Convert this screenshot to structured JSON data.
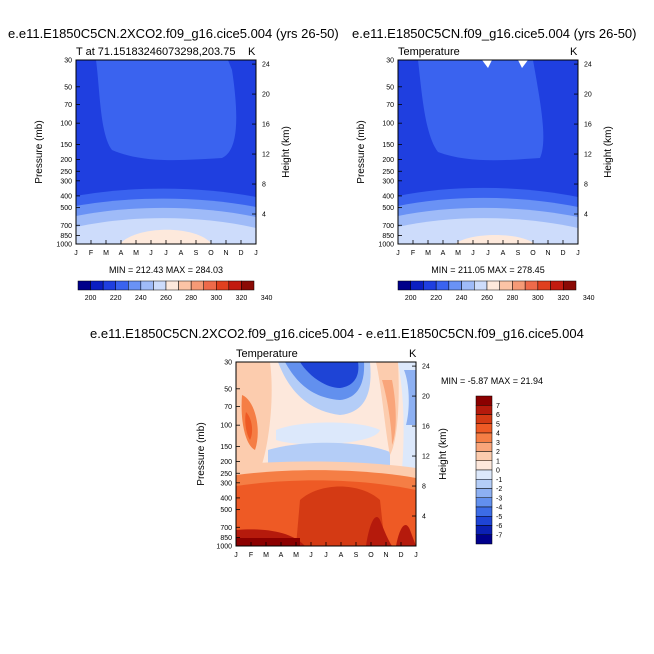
{
  "chart_data": [
    {
      "type": "heatmap",
      "title": "e.e11.E1850C5CN.2XCO2.f09_g16.cice5.004 (yrs 26-50)",
      "left_label": "T at 71.15183246073298,203.75",
      "right_label": "K",
      "xlabel": "",
      "ylabel": "Pressure (mb)",
      "ylabel_right": "Height (km)",
      "x_ticks": [
        "J",
        "F",
        "M",
        "A",
        "M",
        "J",
        "J",
        "A",
        "S",
        "O",
        "N",
        "D",
        "J"
      ],
      "y_ticks": [
        "30",
        "50",
        "70",
        "100",
        "150",
        "200",
        "250",
        "300",
        "400",
        "500",
        "700",
        "850",
        "1000"
      ],
      "y_ticks_right": [
        "24",
        "20",
        "16",
        "12",
        "8",
        "4"
      ],
      "minmax_text": "MIN = 212.43 MAX = 284.03",
      "colorbar_labels": [
        "200",
        "220",
        "240",
        "260",
        "280",
        "300",
        "320",
        "340"
      ]
    },
    {
      "type": "heatmap",
      "title": "e.e11.E1850C5CN.f09_g16.cice5.004 (yrs 26-50)",
      "left_label": "Temperature",
      "right_label": "K",
      "xlabel": "",
      "ylabel": "Pressure (mb)",
      "ylabel_right": "Height (km)",
      "x_ticks": [
        "J",
        "F",
        "M",
        "A",
        "M",
        "J",
        "J",
        "A",
        "S",
        "O",
        "N",
        "D",
        "J"
      ],
      "y_ticks": [
        "30",
        "50",
        "70",
        "100",
        "150",
        "200",
        "250",
        "300",
        "400",
        "500",
        "700",
        "850",
        "1000"
      ],
      "y_ticks_right": [
        "24",
        "20",
        "16",
        "12",
        "8",
        "4"
      ],
      "minmax_text": "MIN = 211.05 MAX = 278.45",
      "colorbar_labels": [
        "200",
        "220",
        "240",
        "260",
        "280",
        "300",
        "320",
        "340"
      ]
    },
    {
      "type": "heatmap",
      "title": "e.e11.E1850C5CN.2XCO2.f09_g16.cice5.004 - e.e11.E1850C5CN.f09_g16.cice5.004",
      "left_label": "Temperature",
      "right_label": "K",
      "xlabel": "",
      "ylabel": "Pressure (mb)",
      "ylabel_right": "Height (km)",
      "x_ticks": [
        "J",
        "F",
        "M",
        "A",
        "M",
        "J",
        "J",
        "A",
        "S",
        "O",
        "N",
        "D",
        "J"
      ],
      "y_ticks": [
        "30",
        "50",
        "70",
        "100",
        "150",
        "200",
        "250",
        "300",
        "400",
        "500",
        "700",
        "850",
        "1000"
      ],
      "y_ticks_right": [
        "24",
        "20",
        "16",
        "12",
        "8",
        "4"
      ],
      "minmax_text": "MIN =  -5.87 MAX =  21.94",
      "colorbar_labels": [
        "7",
        "6",
        "5",
        "4",
        "3",
        "2",
        "1",
        "0",
        "-1",
        "-2",
        "-3",
        "-4",
        "-5",
        "-6",
        "-7"
      ]
    }
  ],
  "colors": {
    "abs_scale": [
      "#00008a",
      "#0b1fc2",
      "#1f3fe0",
      "#3a63ef",
      "#6a92f5",
      "#9fbbf8",
      "#cddcfb",
      "#fde9dc",
      "#fbc4a6",
      "#f59a76",
      "#ee6a4a",
      "#e0401f",
      "#c21b10",
      "#8b0a05"
    ],
    "diff_scale": [
      "#8b0000",
      "#b51a0c",
      "#d43a14",
      "#ee5a25",
      "#f57e45",
      "#f9a57a",
      "#fcccae",
      "#fde8dc",
      "#dce8fb",
      "#b4cdf7",
      "#8db0f2",
      "#6290ee",
      "#3c6ce6",
      "#1e44d6",
      "#0b20b4",
      "#00008c"
    ]
  }
}
